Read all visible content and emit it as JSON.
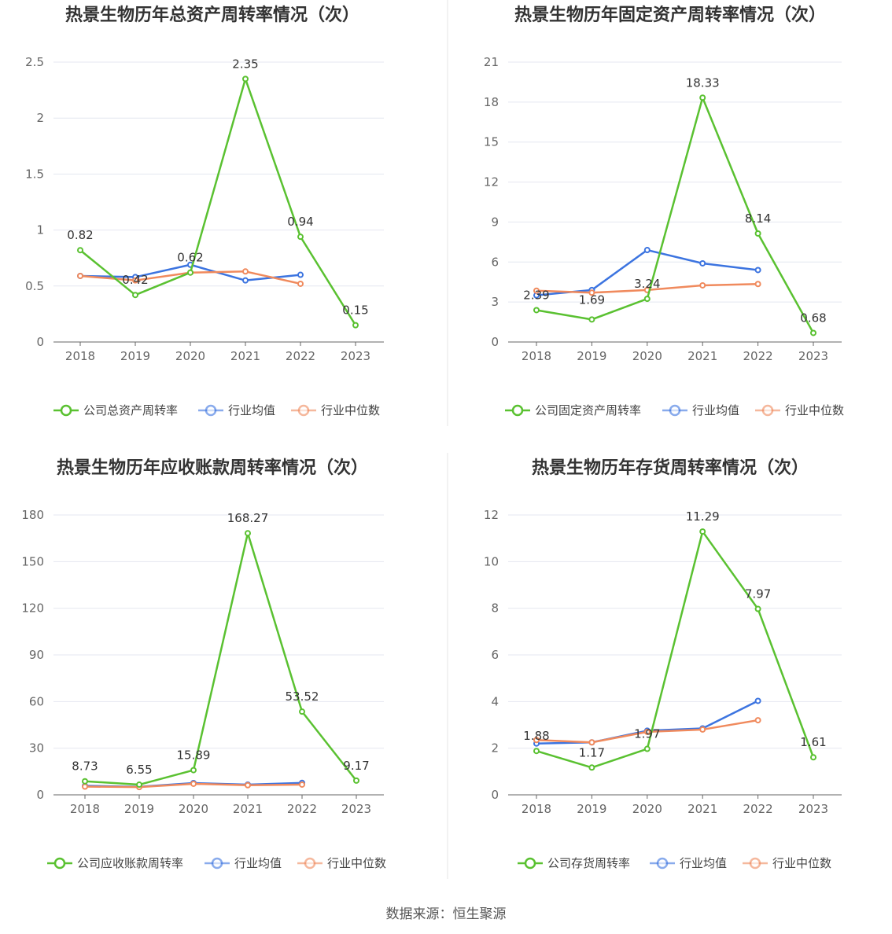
{
  "colors": {
    "company": "#5ac131",
    "industry_avg": "#3c74e0",
    "industry_median": "#f08a5d",
    "grid": "#e4e7f0",
    "axis": "#666666"
  },
  "source_text": "数据来源：恒生聚源",
  "chart_data": [
    {
      "type": "line",
      "title": "热景生物历年总资产周转率情况（次）",
      "categories": [
        "2018",
        "2019",
        "2020",
        "2021",
        "2022",
        "2023"
      ],
      "ylim": [
        0,
        2.5
      ],
      "yticks": [
        0,
        0.5,
        1,
        1.5,
        2,
        2.5
      ],
      "ytick_labels": [
        "0",
        "0.5",
        "1",
        "1.5",
        "2",
        "2.5"
      ],
      "grid": true,
      "legend_position": "bottom",
      "series": [
        {
          "name": "公司总资产周转率",
          "role": "company",
          "values": [
            0.82,
            0.42,
            0.62,
            2.35,
            0.94,
            0.15
          ],
          "labels": [
            "0.82",
            "0.42",
            "0.62",
            "2.35",
            "0.94",
            "0.15"
          ]
        },
        {
          "name": "行业均值",
          "role": "industry_avg",
          "values": [
            0.59,
            0.58,
            0.69,
            0.55,
            0.6,
            null
          ]
        },
        {
          "name": "行业中位数",
          "role": "industry_median",
          "values": [
            0.59,
            0.55,
            0.62,
            0.63,
            0.52,
            null
          ]
        }
      ]
    },
    {
      "type": "line",
      "title": "热景生物历年固定资产周转率情况（次）",
      "categories": [
        "2018",
        "2019",
        "2020",
        "2021",
        "2022",
        "2023"
      ],
      "ylim": [
        0,
        21
      ],
      "yticks": [
        0,
        3,
        6,
        9,
        12,
        15,
        18,
        21
      ],
      "ytick_labels": [
        "0",
        "3",
        "6",
        "9",
        "12",
        "15",
        "18",
        "21"
      ],
      "grid": true,
      "legend_position": "bottom",
      "series": [
        {
          "name": "公司固定资产周转率",
          "role": "company",
          "values": [
            2.39,
            1.69,
            3.24,
            18.33,
            8.14,
            0.68
          ],
          "labels": [
            "2.39",
            "1.69",
            "3.24",
            "18.33",
            "8.14",
            "0.68"
          ]
        },
        {
          "name": "行业均值",
          "role": "industry_avg",
          "values": [
            3.5,
            3.9,
            6.9,
            5.9,
            5.4,
            null
          ]
        },
        {
          "name": "行业中位数",
          "role": "industry_median",
          "values": [
            3.85,
            3.7,
            3.9,
            4.25,
            4.35,
            null
          ]
        }
      ]
    },
    {
      "type": "line",
      "title": "热景生物历年应收账款周转率情况（次）",
      "categories": [
        "2018",
        "2019",
        "2020",
        "2021",
        "2022",
        "2023"
      ],
      "ylim": [
        0,
        180
      ],
      "yticks": [
        0,
        30,
        60,
        90,
        120,
        150,
        180
      ],
      "ytick_labels": [
        "0",
        "30",
        "60",
        "90",
        "120",
        "150",
        "180"
      ],
      "grid": true,
      "legend_position": "bottom",
      "series": [
        {
          "name": "公司应收账款周转率",
          "role": "company",
          "values": [
            8.73,
            6.55,
            15.89,
            168.27,
            53.52,
            9.17
          ],
          "labels": [
            "8.73",
            "6.55",
            "15.89",
            "168.27",
            "53.52",
            "9.17"
          ]
        },
        {
          "name": "行业均值",
          "role": "industry_avg",
          "values": [
            5.8,
            5.2,
            7.6,
            6.6,
            7.7,
            null
          ]
        },
        {
          "name": "行业中位数",
          "role": "industry_median",
          "values": [
            5.3,
            5.0,
            7.1,
            6.2,
            6.6,
            null
          ]
        }
      ]
    },
    {
      "type": "line",
      "title": "热景生物历年存货周转率情况（次）",
      "categories": [
        "2018",
        "2019",
        "2020",
        "2021",
        "2022",
        "2023"
      ],
      "ylim": [
        0,
        12
      ],
      "yticks": [
        0,
        2,
        4,
        6,
        8,
        10,
        12
      ],
      "ytick_labels": [
        "0",
        "2",
        "4",
        "6",
        "8",
        "10",
        "12"
      ],
      "grid": true,
      "legend_position": "bottom",
      "series": [
        {
          "name": "公司存货周转率",
          "role": "company",
          "values": [
            1.88,
            1.17,
            1.97,
            11.29,
            7.97,
            1.61
          ],
          "labels": [
            "1.88",
            "1.17",
            "1.97",
            "11.29",
            "7.97",
            "1.61"
          ]
        },
        {
          "name": "行业均值",
          "role": "industry_avg",
          "values": [
            2.2,
            2.25,
            2.75,
            2.85,
            4.03,
            null
          ]
        },
        {
          "name": "行业中位数",
          "role": "industry_median",
          "values": [
            2.35,
            2.25,
            2.7,
            2.8,
            3.2,
            null
          ]
        }
      ]
    }
  ]
}
